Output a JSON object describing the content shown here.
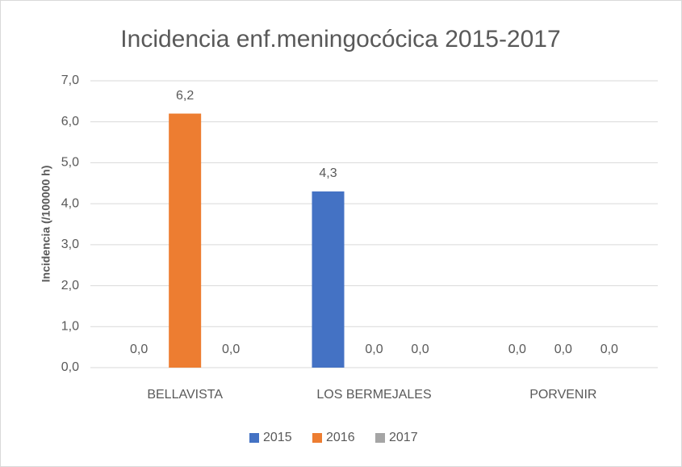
{
  "chart_data": {
    "type": "bar",
    "title": "Incidencia enf.meningocócica 2015-2017",
    "y_label": "Incidencia (/100000 h)",
    "categories": [
      "BELLAVISTA",
      "LOS BERMEJALES",
      "PORVENIR"
    ],
    "series": [
      {
        "name": "2015",
        "color": "#4472c4",
        "values": [
          0,
          4.3,
          0
        ],
        "value_labels": [
          "0,0",
          "4,3",
          "0,0"
        ]
      },
      {
        "name": "2016",
        "color": "#ed7d31",
        "values": [
          6.2,
          0,
          0
        ],
        "value_labels": [
          "6,2",
          "0,0",
          "0,0"
        ]
      },
      {
        "name": "2017",
        "color": "#a5a5a5",
        "values": [
          0,
          0,
          0
        ],
        "value_labels": [
          "0,0",
          "0,0",
          "0,0"
        ]
      }
    ],
    "ylim": [
      0,
      7
    ],
    "yticks": [
      {
        "value": 0,
        "label": "0,0"
      },
      {
        "value": 1,
        "label": "1,0"
      },
      {
        "value": 2,
        "label": "2,0"
      },
      {
        "value": 3,
        "label": "3,0"
      },
      {
        "value": 4,
        "label": "4,0"
      },
      {
        "value": 5,
        "label": "5,0"
      },
      {
        "value": 6,
        "label": "6,0"
      },
      {
        "value": 7,
        "label": "7,0"
      }
    ],
    "grid": true,
    "legend": "bottom"
  }
}
